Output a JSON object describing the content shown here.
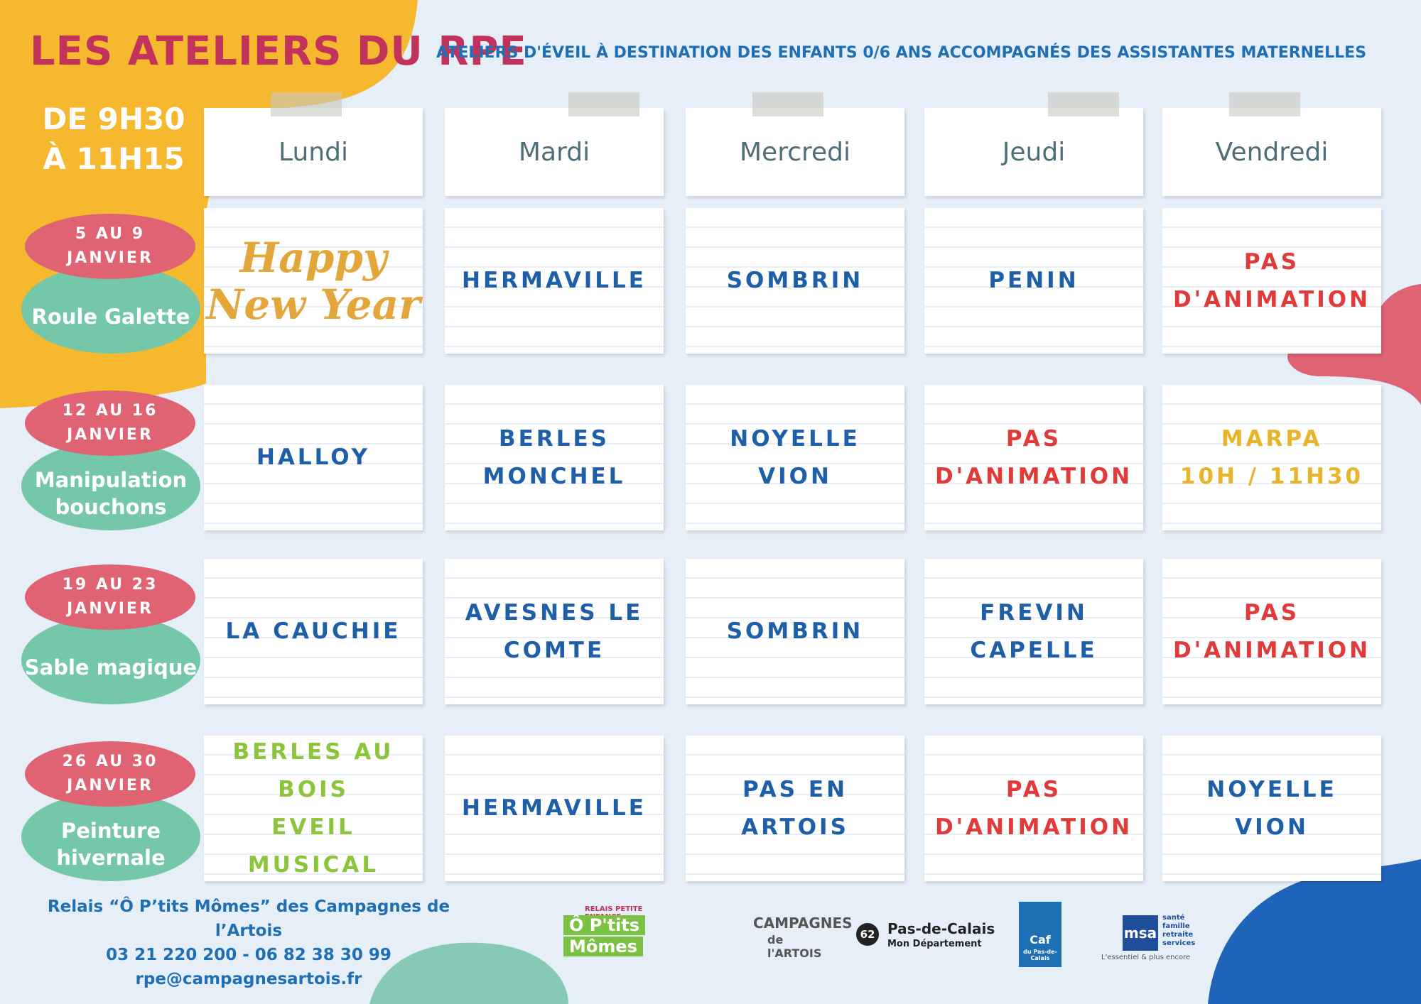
{
  "header": {
    "title": "LES ATELIERS DU RPE",
    "subtitle": "ATELIERS D'ÉVEIL À DESTINATION DES ENFANTS 0/6 ANS ACCOMPAGNÉS DES ASSISTANTES MATERNELLES",
    "hours": [
      "DE 9H30",
      "À 11H15"
    ]
  },
  "days": [
    "Lundi",
    "Mardi",
    "Mercredi",
    "Jeudi",
    "Vendredi"
  ],
  "weeks": [
    {
      "dates": [
        "5 AU 9",
        "JANVIER"
      ],
      "theme": [
        "Roule Galette"
      ],
      "cells": [
        {
          "text": [
            "Happy",
            "New Year"
          ],
          "color": "#e2a63a"
        },
        {
          "text": [
            "HERMAVILLE"
          ],
          "color": "#1f5fa8"
        },
        {
          "text": [
            "SOMBRIN"
          ],
          "color": "#1f5fa8"
        },
        {
          "text": [
            "PENIN"
          ],
          "color": "#1f5fa8"
        },
        {
          "text": [
            "PAS",
            "D'ANIMATION"
          ],
          "color": "#e03a3a"
        }
      ]
    },
    {
      "dates": [
        "12 AU 16",
        "JANVIER"
      ],
      "theme": [
        "Manipulation",
        "bouchons"
      ],
      "cells": [
        {
          "text": [
            "HALLOY"
          ],
          "color": "#1f5fa8"
        },
        {
          "text": [
            "BERLES",
            "MONCHEL"
          ],
          "color": "#1f5fa8"
        },
        {
          "text": [
            "NOYELLE",
            "VION"
          ],
          "color": "#1f5fa8"
        },
        {
          "text": [
            "PAS",
            "D'ANIMATION"
          ],
          "color": "#e03a3a"
        },
        {
          "text": [
            "MARPA",
            "10H / 11H30"
          ],
          "color": "#e8b52a"
        }
      ]
    },
    {
      "dates": [
        "19 AU 23",
        "JANVIER"
      ],
      "theme": [
        "Sable magique"
      ],
      "cells": [
        {
          "text": [
            "LA CAUCHIE"
          ],
          "color": "#1f5fa8"
        },
        {
          "text": [
            "AVESNES LE",
            "COMTE"
          ],
          "color": "#1f5fa8"
        },
        {
          "text": [
            "SOMBRIN"
          ],
          "color": "#1f5fa8"
        },
        {
          "text": [
            "FREVIN",
            "CAPELLE"
          ],
          "color": "#1f5fa8"
        },
        {
          "text": [
            "PAS",
            "D'ANIMATION"
          ],
          "color": "#e03a3a"
        }
      ]
    },
    {
      "dates": [
        "26 AU 30",
        "JANVIER"
      ],
      "theme": [
        "Peinture",
        "hivernale"
      ],
      "cells": [
        {
          "text": [
            "BERLES AU",
            "BOIS",
            "EVEIL MUSICAL"
          ],
          "color": "#8cc43c"
        },
        {
          "text": [
            "HERMAVILLE"
          ],
          "color": "#1f5fa8"
        },
        {
          "text": [
            "PAS EN",
            "ARTOIS"
          ],
          "color": "#1f5fa8"
        },
        {
          "text": [
            "PAS",
            "D'ANIMATION"
          ],
          "color": "#e03a3a"
        },
        {
          "text": [
            "NOYELLE",
            "VION"
          ],
          "color": "#1f5fa8"
        }
      ]
    }
  ],
  "footer": {
    "contact": [
      "Relais “Ô P’tits Mômes” des Campagnes de l’Artois",
      "03 21 220 200 - 06 82 38 30 99",
      "rpe@campagnesartois.fr"
    ],
    "logos": {
      "relais": [
        "RELAIS PETITE ENFANCE",
        "Ô P'tits",
        "Mômes"
      ],
      "campagnes": [
        "CAMPAGNES",
        "de l'ARTOIS"
      ],
      "departement": [
        "62",
        "Pas-de-Calais",
        "Mon Département"
      ],
      "caf": [
        "Caf",
        "du Pas-de-Calais"
      ],
      "msa": [
        "msa",
        "santé",
        "famille",
        "retraite",
        "services",
        "L'essentiel & plus encore"
      ]
    }
  }
}
